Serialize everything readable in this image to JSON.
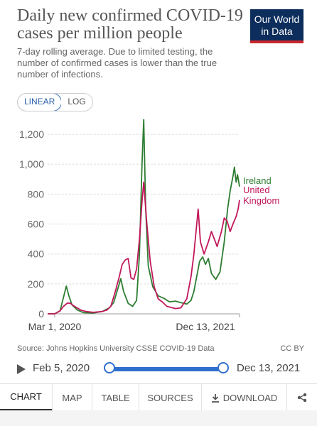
{
  "header": {
    "title": "Daily new confirmed COVID-19 cases per million people",
    "subtitle": "7-day rolling average. Due to limited testing, the number of confirmed cases is lower than the true number of infections.",
    "logo_line1": "Our World",
    "logo_line2": "in Data"
  },
  "scale_toggle": {
    "linear": "LINEAR",
    "log": "LOG",
    "active": "linear"
  },
  "footer": {
    "source": "Source: Johns Hopkins University CSSE COVID-19 Data",
    "license": "CC BY"
  },
  "timeline": {
    "start": "Feb 5, 2020",
    "end": "Dec 13, 2021"
  },
  "tabs": {
    "chart": "CHART",
    "map": "MAP",
    "table": "TABLE",
    "sources": "SOURCES",
    "download": "DOWNLOAD",
    "active": "chart",
    "share_icon": "share-icon",
    "download_icon": "download-icon"
  },
  "colors": {
    "ireland": "#2e7d32",
    "uk": "#c2185b",
    "accent": "#2f6fd0",
    "logo_bg": "#0d2e5c",
    "logo_accent": "#c8272e"
  },
  "chart_data": {
    "type": "line",
    "title": "Daily new confirmed COVID-19 cases per million people",
    "ylim": [
      0,
      1300
    ],
    "yticks": [
      0,
      200,
      400,
      600,
      800,
      1000,
      1200
    ],
    "ytick_labels": [
      "0",
      "200",
      "400",
      "600",
      "800",
      "1,000",
      "1,200"
    ],
    "xlim": [
      "2020-02-05",
      "2021-12-13"
    ],
    "xtick_labels": [
      "Mar 1, 2020",
      "Dec 13, 2021"
    ],
    "xticks": [
      "2020-03-01",
      "2021-12-13"
    ],
    "series": [
      {
        "name": "Ireland",
        "color": "#2e7d32",
        "points": [
          [
            "2020-02-05",
            0
          ],
          [
            "2020-03-01",
            0
          ],
          [
            "2020-03-20",
            20
          ],
          [
            "2020-04-01",
            110
          ],
          [
            "2020-04-11",
            185
          ],
          [
            "2020-04-20",
            120
          ],
          [
            "2020-05-01",
            60
          ],
          [
            "2020-05-20",
            25
          ],
          [
            "2020-06-10",
            8
          ],
          [
            "2020-07-15",
            5
          ],
          [
            "2020-08-15",
            15
          ],
          [
            "2020-09-10",
            40
          ],
          [
            "2020-09-25",
            75
          ],
          [
            "2020-10-10",
            170
          ],
          [
            "2020-10-20",
            235
          ],
          [
            "2020-10-30",
            150
          ],
          [
            "2020-11-15",
            70
          ],
          [
            "2020-12-01",
            50
          ],
          [
            "2020-12-15",
            90
          ],
          [
            "2020-12-25",
            400
          ],
          [
            "2021-01-03",
            1000
          ],
          [
            "2021-01-09",
            1300
          ],
          [
            "2021-01-16",
            700
          ],
          [
            "2021-01-25",
            320
          ],
          [
            "2021-02-10",
            180
          ],
          [
            "2021-03-01",
            120
          ],
          [
            "2021-03-20",
            105
          ],
          [
            "2021-04-10",
            80
          ],
          [
            "2021-05-01",
            85
          ],
          [
            "2021-05-20",
            75
          ],
          [
            "2021-06-10",
            65
          ],
          [
            "2021-06-25",
            90
          ],
          [
            "2021-07-05",
            150
          ],
          [
            "2021-07-15",
            250
          ],
          [
            "2021-07-25",
            350
          ],
          [
            "2021-08-05",
            380
          ],
          [
            "2021-08-15",
            330
          ],
          [
            "2021-08-25",
            370
          ],
          [
            "2021-09-05",
            270
          ],
          [
            "2021-09-20",
            230
          ],
          [
            "2021-10-05",
            280
          ],
          [
            "2021-10-20",
            480
          ],
          [
            "2021-11-01",
            700
          ],
          [
            "2021-11-10",
            820
          ],
          [
            "2021-11-20",
            920
          ],
          [
            "2021-11-25",
            980
          ],
          [
            "2021-12-01",
            880
          ],
          [
            "2021-12-06",
            930
          ],
          [
            "2021-12-13",
            850
          ]
        ]
      },
      {
        "name": "United Kingdom",
        "color": "#c2185b",
        "points": [
          [
            "2020-02-05",
            0
          ],
          [
            "2020-03-01",
            0
          ],
          [
            "2020-03-20",
            20
          ],
          [
            "2020-04-01",
            50
          ],
          [
            "2020-04-15",
            72
          ],
          [
            "2020-04-25",
            70
          ],
          [
            "2020-05-10",
            50
          ],
          [
            "2020-06-01",
            25
          ],
          [
            "2020-06-20",
            15
          ],
          [
            "2020-07-15",
            10
          ],
          [
            "2020-08-15",
            15
          ],
          [
            "2020-09-01",
            25
          ],
          [
            "2020-09-15",
            50
          ],
          [
            "2020-10-01",
            150
          ],
          [
            "2020-10-15",
            250
          ],
          [
            "2020-10-25",
            330
          ],
          [
            "2020-11-05",
            360
          ],
          [
            "2020-11-15",
            370
          ],
          [
            "2020-11-25",
            240
          ],
          [
            "2020-12-05",
            230
          ],
          [
            "2020-12-15",
            300
          ],
          [
            "2020-12-25",
            500
          ],
          [
            "2021-01-03",
            750
          ],
          [
            "2021-01-09",
            880
          ],
          [
            "2021-01-20",
            600
          ],
          [
            "2021-02-01",
            350
          ],
          [
            "2021-02-15",
            180
          ],
          [
            "2021-03-01",
            100
          ],
          [
            "2021-03-15",
            80
          ],
          [
            "2021-04-01",
            50
          ],
          [
            "2021-05-01",
            35
          ],
          [
            "2021-05-20",
            40
          ],
          [
            "2021-06-10",
            100
          ],
          [
            "2021-06-25",
            250
          ],
          [
            "2021-07-05",
            400
          ],
          [
            "2021-07-15",
            600
          ],
          [
            "2021-07-20",
            700
          ],
          [
            "2021-07-28",
            480
          ],
          [
            "2021-08-10",
            400
          ],
          [
            "2021-08-25",
            480
          ],
          [
            "2021-09-05",
            550
          ],
          [
            "2021-09-15",
            500
          ],
          [
            "2021-09-25",
            450
          ],
          [
            "2021-10-10",
            550
          ],
          [
            "2021-10-20",
            640
          ],
          [
            "2021-10-30",
            620
          ],
          [
            "2021-11-10",
            550
          ],
          [
            "2021-11-20",
            600
          ],
          [
            "2021-12-01",
            650
          ],
          [
            "2021-12-08",
            700
          ],
          [
            "2021-12-13",
            760
          ]
        ]
      }
    ]
  }
}
